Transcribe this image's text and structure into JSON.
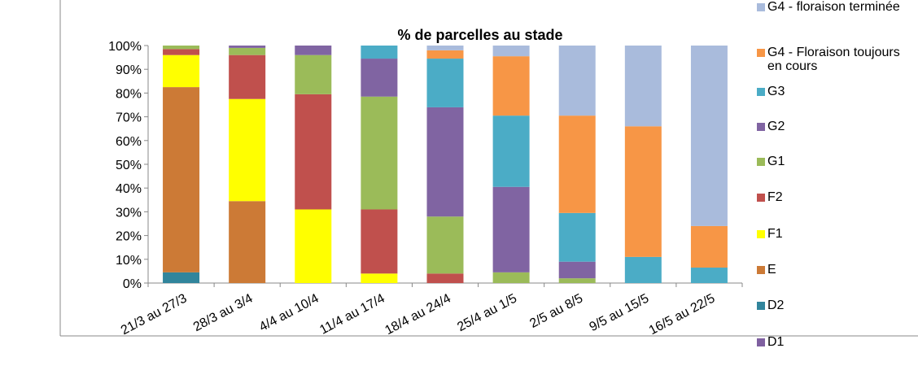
{
  "chart_data": {
    "type": "stacked_bar",
    "title": "% de parcelles au stade",
    "categories": [
      "21/3 au 27/3",
      "28/3 au 3/4",
      "4/4 au 10/4",
      "11/4 au 17/4",
      "18/4 au 24/4",
      "25/4 au 1/5",
      "2/5 au 8/5",
      "9/5 au 15/5",
      "16/5 au 22/5"
    ],
    "series": [
      {
        "name": "D1",
        "color": "#7f60a0",
        "values": [
          0,
          0,
          0,
          0,
          0,
          0,
          0,
          0,
          0
        ]
      },
      {
        "name": "D2",
        "color": "#31859c",
        "values": [
          4.5,
          0,
          0,
          0,
          0,
          0,
          0,
          0,
          0
        ]
      },
      {
        "name": "E",
        "color": "#cc7a36",
        "values": [
          78,
          34.5,
          0,
          0,
          0,
          0,
          0,
          0,
          0
        ]
      },
      {
        "name": "F1",
        "color": "#ffff00",
        "values": [
          13.5,
          43,
          31,
          4,
          0,
          0,
          0,
          0,
          0
        ]
      },
      {
        "name": "F2",
        "color": "#c0504d",
        "values": [
          2.5,
          18.5,
          48.5,
          27,
          4,
          0,
          0,
          0,
          0
        ]
      },
      {
        "name": "G1",
        "color": "#9bbb59",
        "values": [
          1.5,
          3,
          16.5,
          47.5,
          24,
          4.5,
          2,
          0,
          0
        ]
      },
      {
        "name": "G2",
        "color": "#8064a2",
        "values": [
          0,
          1,
          4,
          16,
          46,
          36,
          7,
          0,
          0
        ]
      },
      {
        "name": "G3",
        "color": "#4bacc6",
        "values": [
          0,
          0,
          0,
          5.5,
          20.5,
          30,
          20.5,
          11,
          6.5
        ]
      },
      {
        "name": "G4 - Floraison toujours en cours",
        "color": "#f79646",
        "values": [
          0,
          0,
          0,
          0,
          3.5,
          25,
          41,
          55,
          17.5
        ]
      },
      {
        "name": "G4 - floraison terminée",
        "color": "#a9bbdc",
        "values": [
          0,
          0,
          0,
          0,
          2,
          4.5,
          29.5,
          34,
          76
        ]
      }
    ],
    "ylim": [
      0,
      100
    ],
    "yticks": [
      {
        "value": 0,
        "label": "0%"
      },
      {
        "value": 10,
        "label": "10%"
      },
      {
        "value": 20,
        "label": "20%"
      },
      {
        "value": 30,
        "label": "30%"
      },
      {
        "value": 40,
        "label": "40%"
      },
      {
        "value": 50,
        "label": "50%"
      },
      {
        "value": 60,
        "label": "60%"
      },
      {
        "value": 70,
        "label": "70%"
      },
      {
        "value": 80,
        "label": "80%"
      },
      {
        "value": 90,
        "label": "90%"
      },
      {
        "value": 100,
        "label": "100%"
      }
    ],
    "legend": "right"
  }
}
